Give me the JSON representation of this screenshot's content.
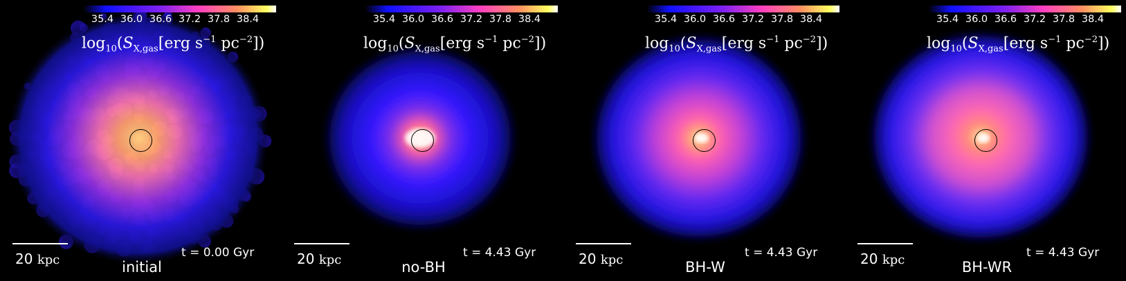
{
  "colorbar": {
    "ticks": [
      "35.4",
      "36.0",
      "36.6",
      "37.2",
      "37.8",
      "38.4"
    ],
    "label_prefix": "log",
    "label_log_base": "10",
    "label_symbol": "S",
    "label_symbol_sub": "X,gas",
    "label_units_a": "[erg s",
    "label_units_a_exp": "−1",
    "label_units_b": " pc",
    "label_units_b_exp": "−2",
    "label_close": "])",
    "colors": [
      "#000000",
      "#1010ff",
      "#8020f0",
      "#ff40c0",
      "#ff9060",
      "#ffff60",
      "#ffffff"
    ]
  },
  "scalebar": {
    "value": "20",
    "unit": "kpc"
  },
  "panels": [
    {
      "name": "initial",
      "time": "t = 0.00 Gyr"
    },
    {
      "name": "no-BH",
      "time": "t = 4.43 Gyr"
    },
    {
      "name": "BH-W",
      "time": "t = 4.43 Gyr"
    },
    {
      "name": "BH-WR",
      "time": "t = 4.43 Gyr"
    }
  ]
}
